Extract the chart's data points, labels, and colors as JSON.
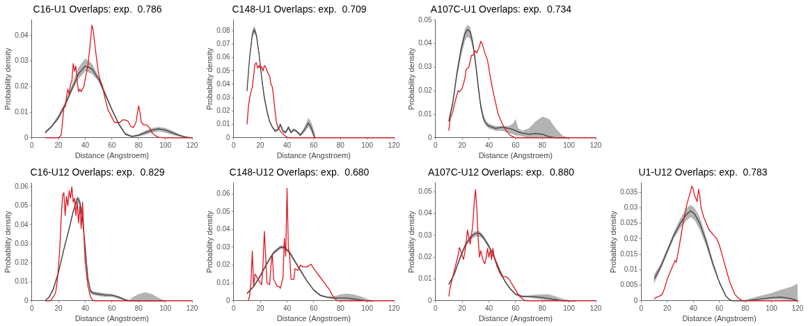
{
  "chart_data": [
    {
      "type": "line",
      "title": "C16-U1 Overlaps: exp.  0.786",
      "xlabel": "Distance (Angstroem)",
      "ylabel": "Probability density",
      "xlim": [
        0,
        120
      ],
      "xticks": [
        0,
        20,
        40,
        60,
        80,
        100,
        120
      ],
      "ylim": [
        0,
        0.046
      ],
      "yticks": [
        0,
        0.01,
        0.02,
        0.03,
        0.04
      ],
      "grid": false,
      "legend": false,
      "marker": "none",
      "line_style": "solid",
      "series": [
        {
          "color": "#e0141e",
          "x": [
            10,
            20,
            22,
            23,
            24,
            25,
            26,
            27,
            28,
            29,
            30,
            31,
            32,
            33,
            34,
            35,
            36,
            37,
            38,
            39,
            40,
            42,
            44,
            45,
            46,
            48,
            50,
            51,
            53,
            55,
            57,
            60,
            62,
            64,
            66,
            68,
            70,
            72,
            74,
            76,
            78,
            80,
            81,
            82,
            84,
            86,
            88,
            90,
            92,
            95,
            100,
            120
          ],
          "values": [
            0,
            0,
            0.001,
            0.006,
            0.012,
            0.012,
            0.016,
            0.019,
            0.017,
            0.021,
            0.022,
            0.029,
            0.026,
            0.028,
            0.022,
            0.018,
            0.019,
            0.018,
            0.019,
            0.02,
            0.023,
            0.028,
            0.038,
            0.044,
            0.042,
            0.033,
            0.025,
            0.023,
            0.02,
            0.015,
            0.011,
            0.008,
            0.006,
            0.006,
            0.006,
            0.007,
            0.007,
            0.0065,
            0.0045,
            0.004,
            0.006,
            0.0125,
            0.01,
            0.006,
            0.005,
            0.005,
            0.004,
            0.002,
            0.001,
            0.0002,
            0,
            0
          ]
        },
        {
          "color": "#404040",
          "x": [
            10,
            15,
            20,
            25,
            30,
            35,
            40,
            45,
            50,
            55,
            60,
            65,
            70,
            75,
            80,
            85,
            90,
            95,
            100,
            105,
            110,
            115,
            120
          ],
          "values": [
            0.002,
            0.0045,
            0.008,
            0.013,
            0.019,
            0.025,
            0.028,
            0.027,
            0.023,
            0.017,
            0.011,
            0.0055,
            0.0015,
            0.0005,
            0.001,
            0.002,
            0.003,
            0.0035,
            0.003,
            0.002,
            0.001,
            0.0003,
            0
          ],
          "lower": [
            0.0015,
            0.004,
            0.007,
            0.012,
            0.018,
            0.023,
            0.026,
            0.025,
            0.022,
            0.016,
            0.0105,
            0.005,
            0.001,
            0.0002,
            0.0005,
            0.0012,
            0.002,
            0.0025,
            0.002,
            0.0012,
            0.0005,
            0.0001,
            0
          ],
          "upper": [
            0.0025,
            0.005,
            0.009,
            0.014,
            0.0205,
            0.0275,
            0.031,
            0.029,
            0.024,
            0.018,
            0.0115,
            0.006,
            0.002,
            0.0008,
            0.0015,
            0.0028,
            0.0038,
            0.0042,
            0.0038,
            0.0028,
            0.0015,
            0.0005,
            0
          ]
        }
      ]
    },
    {
      "type": "line",
      "title": "C148-U1 Overlaps: exp.  0.709",
      "xlabel": "Distance (Angstroem)",
      "ylabel": "Probability density",
      "xlim": [
        0,
        120
      ],
      "xticks": [
        0,
        20,
        40,
        60,
        80,
        100,
        120
      ],
      "ylim": [
        0,
        0.088
      ],
      "yticks": [
        0,
        0.01,
        0.02,
        0.03,
        0.04,
        0.05,
        0.06,
        0.07,
        0.08
      ],
      "grid": false,
      "legend": false,
      "marker": "none",
      "line_style": "solid",
      "series": [
        {
          "color": "#e0141e",
          "x": [
            10,
            11,
            12,
            14,
            16,
            17,
            18,
            19,
            20,
            21,
            22,
            23,
            24,
            25,
            26,
            27,
            28,
            29,
            30,
            31,
            32,
            33,
            35,
            37,
            39,
            41,
            120
          ],
          "values": [
            0.01,
            0.022,
            0.03,
            0.038,
            0.055,
            0.056,
            0.052,
            0.054,
            0.052,
            0.053,
            0.05,
            0.054,
            0.053,
            0.05,
            0.048,
            0.046,
            0.04,
            0.038,
            0.03,
            0.02,
            0.012,
            0.008,
            0.005,
            0.003,
            0.001,
            0,
            0
          ]
        },
        {
          "color": "#404040",
          "x": [
            10,
            12,
            14,
            15.5,
            17,
            19,
            21,
            23,
            25,
            27,
            29,
            31,
            33,
            35,
            37,
            39,
            41,
            43,
            45,
            47,
            50,
            53,
            56,
            58,
            60,
            61
          ],
          "values": [
            0.035,
            0.06,
            0.077,
            0.081,
            0.077,
            0.063,
            0.045,
            0.03,
            0.02,
            0.012,
            0.008,
            0.005,
            0.006,
            0.01,
            0.005,
            0.004,
            0.008,
            0.004,
            0.006,
            0.005,
            0.002,
            0.006,
            0.011,
            0.008,
            0.002,
            0
          ],
          "lower": [
            0.033,
            0.058,
            0.075,
            0.078,
            0.075,
            0.061,
            0.043,
            0.028,
            0.018,
            0.011,
            0.007,
            0.004,
            0.005,
            0.008,
            0.004,
            0.003,
            0.006,
            0.003,
            0.005,
            0.004,
            0.001,
            0.004,
            0.008,
            0.005,
            0,
            0
          ],
          "upper": [
            0.037,
            0.062,
            0.08,
            0.084,
            0.079,
            0.065,
            0.047,
            0.032,
            0.022,
            0.013,
            0.009,
            0.006,
            0.007,
            0.011,
            0.006,
            0.005,
            0.009,
            0.005,
            0.007,
            0.006,
            0.003,
            0.008,
            0.015,
            0.012,
            0.006,
            0.003
          ]
        }
      ]
    },
    {
      "type": "line",
      "title": "A107C-U1 Overlaps: exp.  0.734",
      "xlabel": "Distance (Angstroem)",
      "ylabel": "Probability density",
      "xlim": [
        0,
        120
      ],
      "xticks": [
        0,
        20,
        40,
        60,
        80,
        100,
        120
      ],
      "ylim": [
        0,
        0.05
      ],
      "yticks": [
        0,
        0.01,
        0.02,
        0.03,
        0.04,
        0.05
      ],
      "grid": false,
      "legend": false,
      "marker": "none",
      "line_style": "solid",
      "series": [
        {
          "color": "#e0141e",
          "x": [
            10,
            11,
            13,
            15,
            17,
            18,
            20,
            22,
            23,
            25,
            27,
            28,
            30,
            31,
            33,
            34,
            35,
            37,
            39,
            41,
            43,
            45,
            47,
            50,
            53,
            56,
            60,
            120
          ],
          "values": [
            0.003,
            0.008,
            0.011,
            0.016,
            0.02,
            0.0195,
            0.021,
            0.025,
            0.029,
            0.03,
            0.035,
            0.035,
            0.037,
            0.036,
            0.039,
            0.041,
            0.04,
            0.036,
            0.033,
            0.026,
            0.02,
            0.015,
            0.01,
            0.006,
            0.003,
            0.001,
            0,
            0
          ]
        },
        {
          "color": "#404040",
          "x": [
            10,
            13,
            16,
            19,
            22,
            24,
            26,
            28,
            30,
            32,
            34,
            36,
            38,
            40,
            45,
            50,
            55,
            58,
            60,
            62,
            65,
            70,
            75,
            80,
            85,
            90,
            95,
            100
          ],
          "values": [
            0.007,
            0.015,
            0.027,
            0.037,
            0.044,
            0.046,
            0.045,
            0.04,
            0.032,
            0.022,
            0.013,
            0.008,
            0.006,
            0.005,
            0.004,
            0.0045,
            0.004,
            0.0035,
            0.003,
            0.0025,
            0.002,
            0.0015,
            0.0018,
            0.0015,
            0.0005,
            0,
            0,
            0
          ],
          "lower": [
            0.006,
            0.013,
            0.025,
            0.034,
            0.041,
            0.043,
            0.042,
            0.038,
            0.03,
            0.02,
            0.012,
            0.007,
            0.005,
            0.004,
            0.003,
            0.003,
            0.002,
            0.0015,
            0.001,
            0.001,
            0.0005,
            0,
            0,
            0,
            0,
            0,
            0,
            0
          ],
          "upper": [
            0.008,
            0.016,
            0.029,
            0.039,
            0.046,
            0.048,
            0.047,
            0.042,
            0.034,
            0.024,
            0.015,
            0.01,
            0.007,
            0.006,
            0.005,
            0.005,
            0.005,
            0.006,
            0.008,
            0.004,
            0.003,
            0.004,
            0.007,
            0.009,
            0.008,
            0.004,
            0.001,
            0
          ]
        }
      ]
    },
    {
      "type": "line",
      "title": "C16-U12 Overlaps: exp.  0.829",
      "xlabel": "Distance (Angstroem)",
      "ylabel": "Probability density",
      "xlim": [
        0,
        120
      ],
      "xticks": [
        0,
        20,
        40,
        60,
        80,
        100,
        120
      ],
      "ylim": [
        0,
        0.062
      ],
      "yticks": [
        0,
        0.01,
        0.02,
        0.03,
        0.04,
        0.05,
        0.06
      ],
      "grid": false,
      "legend": false,
      "marker": "none",
      "line_style": "solid",
      "series": [
        {
          "color": "#e0141e",
          "x": [
            10,
            14,
            15,
            17,
            18,
            19,
            20,
            21,
            22,
            23,
            24,
            25,
            26,
            27,
            28,
            29,
            30,
            31,
            32,
            33,
            34,
            35,
            36,
            37,
            38,
            39,
            40,
            42,
            44,
            46,
            120
          ],
          "values": [
            0,
            0,
            0.001,
            0.003,
            0.005,
            0.01,
            0.018,
            0.028,
            0.043,
            0.055,
            0.057,
            0.045,
            0.055,
            0.05,
            0.058,
            0.054,
            0.06,
            0.052,
            0.054,
            0.045,
            0.052,
            0.041,
            0.05,
            0.038,
            0.052,
            0.035,
            0.02,
            0.008,
            0.002,
            0,
            0
          ]
        },
        {
          "color": "#404040",
          "x": [
            10,
            13,
            16,
            20,
            24,
            28,
            31,
            34,
            36,
            38,
            40,
            42,
            44,
            46,
            50,
            55,
            60,
            65,
            70,
            73,
            76,
            80,
            85,
            90,
            95,
            100
          ],
          "values": [
            0,
            0.002,
            0.006,
            0.015,
            0.027,
            0.038,
            0.047,
            0.054,
            0.052,
            0.043,
            0.028,
            0.012,
            0.005,
            0.004,
            0.0035,
            0.003,
            0.003,
            0.002,
            0.0005,
            0,
            0,
            0,
            0,
            0,
            0,
            0
          ],
          "lower": [
            0,
            0.0015,
            0.005,
            0.014,
            0.026,
            0.037,
            0.046,
            0.052,
            0.05,
            0.041,
            0.026,
            0.011,
            0.004,
            0.003,
            0.0025,
            0.002,
            0.002,
            0.001,
            0,
            0,
            0,
            0,
            0,
            0,
            0,
            0
          ],
          "upper": [
            0,
            0.0025,
            0.007,
            0.016,
            0.028,
            0.039,
            0.048,
            0.055,
            0.054,
            0.045,
            0.03,
            0.013,
            0.006,
            0.005,
            0.0045,
            0.004,
            0.0035,
            0.0025,
            0.001,
            0.0005,
            0.002,
            0.0035,
            0.0045,
            0.0035,
            0.0015,
            0
          ]
        }
      ]
    },
    {
      "type": "line",
      "title": "C148-U12 Overlaps: exp.  0.680",
      "xlabel": "Distance (Angstroem)",
      "ylabel": "Probability density",
      "xlim": [
        0,
        120
      ],
      "xticks": [
        0,
        20,
        40,
        60,
        80,
        100,
        120
      ],
      "ylim": [
        0,
        0.066
      ],
      "yticks": [
        0,
        0.01,
        0.02,
        0.03,
        0.04,
        0.05,
        0.06
      ],
      "grid": false,
      "legend": false,
      "marker": "none",
      "line_style": "solid",
      "series": [
        {
          "color": "#e0141e",
          "x": [
            11,
            12,
            13,
            14,
            15,
            16,
            17,
            18,
            20,
            21,
            22,
            23,
            24,
            25,
            27,
            28,
            29,
            30,
            32,
            33,
            34,
            35,
            36,
            37,
            38,
            39,
            40,
            41,
            42,
            43,
            45,
            46,
            48,
            50,
            52,
            55,
            58,
            60,
            62,
            65,
            68,
            70,
            72,
            74,
            76,
            78,
            120
          ],
          "values": [
            0,
            0.003,
            0.01,
            0.028,
            0.008,
            0.015,
            0.014,
            0.012,
            0.01,
            0.009,
            0.02,
            0.039,
            0.025,
            0.01,
            0.009,
            0.02,
            0.026,
            0.012,
            0.009,
            0.008,
            0.008,
            0.007,
            0.01,
            0.013,
            0.035,
            0.025,
            0.063,
            0.03,
            0.025,
            0.012,
            0.012,
            0.018,
            0.017,
            0.02,
            0.019,
            0.019,
            0.0205,
            0.018,
            0.016,
            0.013,
            0.01,
            0.008,
            0.006,
            0.003,
            0.001,
            0,
            0
          ]
        },
        {
          "color": "#404040",
          "x": [
            10,
            15,
            20,
            25,
            30,
            35,
            38,
            42,
            46,
            50,
            55,
            60,
            65,
            70,
            75,
            80,
            85,
            90,
            95,
            100,
            105
          ],
          "values": [
            0.004,
            0.008,
            0.014,
            0.021,
            0.027,
            0.03,
            0.03,
            0.027,
            0.022,
            0.017,
            0.011,
            0.006,
            0.003,
            0.002,
            0.0015,
            0.0015,
            0.0015,
            0.001,
            0.0005,
            0,
            0
          ],
          "lower": [
            0.0035,
            0.0075,
            0.013,
            0.02,
            0.026,
            0.029,
            0.029,
            0.026,
            0.021,
            0.016,
            0.0105,
            0.0055,
            0.0025,
            0.0015,
            0.001,
            0.0005,
            0.0003,
            0,
            0,
            0,
            0
          ],
          "upper": [
            0.0045,
            0.0085,
            0.015,
            0.022,
            0.028,
            0.031,
            0.031,
            0.028,
            0.023,
            0.018,
            0.0115,
            0.0065,
            0.0035,
            0.0025,
            0.0025,
            0.0035,
            0.004,
            0.0035,
            0.0025,
            0.001,
            0
          ]
        }
      ]
    },
    {
      "type": "line",
      "title": "A107C-U12 Overlaps: exp.  0.880",
      "xlabel": "Distance (Angstroem)",
      "ylabel": "Probability density",
      "xlim": [
        0,
        120
      ],
      "xticks": [
        0,
        20,
        40,
        60,
        80,
        100,
        120
      ],
      "ylim": [
        0,
        0.054
      ],
      "yticks": [
        0,
        0.01,
        0.02,
        0.03,
        0.04,
        0.05
      ],
      "grid": false,
      "legend": false,
      "marker": "none",
      "line_style": "solid",
      "series": [
        {
          "color": "#e0141e",
          "x": [
            10,
            11,
            13,
            15,
            17,
            18,
            20,
            21,
            22,
            24,
            25,
            26,
            27,
            28,
            29,
            30,
            31,
            32,
            33,
            34,
            35,
            36,
            37,
            38,
            39,
            40,
            41,
            42,
            43,
            44,
            46,
            48,
            50,
            53,
            55,
            58,
            60,
            63,
            66,
            68,
            120
          ],
          "values": [
            0.002,
            0.006,
            0.011,
            0.016,
            0.021,
            0.0245,
            0.021,
            0.019,
            0.022,
            0.0325,
            0.029,
            0.026,
            0.03,
            0.035,
            0.045,
            0.051,
            0.042,
            0.028,
            0.02,
            0.023,
            0.02,
            0.018,
            0.017,
            0.02,
            0.024,
            0.02,
            0.023,
            0.019,
            0.024,
            0.02,
            0.016,
            0.013,
            0.011,
            0.011,
            0.01,
            0.007,
            0.005,
            0.002,
            0.0005,
            0,
            0
          ]
        },
        {
          "color": "#404040",
          "x": [
            10,
            14,
            18,
            22,
            26,
            30,
            33,
            36,
            40,
            44,
            48,
            52,
            56,
            60,
            65,
            70,
            75,
            80,
            85,
            90,
            95,
            100,
            105
          ],
          "values": [
            0.0075,
            0.012,
            0.019,
            0.025,
            0.029,
            0.031,
            0.031,
            0.029,
            0.025,
            0.02,
            0.014,
            0.009,
            0.0055,
            0.003,
            0.002,
            0.002,
            0.0018,
            0.0015,
            0.001,
            0.0005,
            0,
            0,
            0
          ],
          "lower": [
            0.007,
            0.0115,
            0.018,
            0.024,
            0.028,
            0.0295,
            0.0295,
            0.028,
            0.024,
            0.019,
            0.013,
            0.0085,
            0.005,
            0.0025,
            0.0015,
            0.0015,
            0.001,
            0.0005,
            0.0002,
            0,
            0,
            0,
            0
          ],
          "upper": [
            0.008,
            0.0125,
            0.02,
            0.026,
            0.03,
            0.032,
            0.032,
            0.03,
            0.026,
            0.021,
            0.015,
            0.0095,
            0.006,
            0.0035,
            0.0025,
            0.0025,
            0.0028,
            0.003,
            0.003,
            0.002,
            0.001,
            0.0003,
            0
          ]
        }
      ]
    },
    {
      "type": "line",
      "title": "U1-U12 Overlaps: exp.  0.783",
      "xlabel": "Distance (Angstroem)",
      "ylabel": "Probability density",
      "xlim": [
        0,
        120
      ],
      "xticks": [
        0,
        20,
        40,
        60,
        80,
        100,
        120
      ],
      "ylim": [
        0,
        0.038
      ],
      "yticks": [
        0,
        0.005,
        0.01,
        0.015,
        0.02,
        0.025,
        0.03,
        0.035
      ],
      "grid": false,
      "legend": false,
      "marker": "none",
      "line_style": "solid",
      "series": [
        {
          "color": "#e0141e",
          "x": [
            10,
            11,
            14,
            16,
            18,
            20,
            22,
            24,
            26,
            27,
            29,
            31,
            33,
            35,
            37,
            39,
            40,
            41,
            42,
            43,
            44,
            45,
            46,
            48,
            50,
            52,
            54,
            56,
            58,
            60,
            62,
            64,
            66,
            68,
            70,
            72,
            75,
            78,
            120
          ],
          "values": [
            0.0005,
            0.001,
            0.0015,
            0.002,
            0.004,
            0.007,
            0.009,
            0.011,
            0.013,
            0.0125,
            0.017,
            0.022,
            0.027,
            0.031,
            0.034,
            0.037,
            0.036,
            0.034,
            0.033,
            0.032,
            0.036,
            0.034,
            0.03,
            0.027,
            0.025,
            0.023,
            0.022,
            0.021,
            0.02,
            0.018,
            0.015,
            0.012,
            0.009,
            0.006,
            0.004,
            0.002,
            0.0007,
            0,
            0
          ]
        },
        {
          "color": "#404040",
          "x": [
            10,
            15,
            20,
            25,
            30,
            35,
            38,
            41,
            45,
            50,
            55,
            60,
            65,
            68,
            70,
            80,
            90,
            100,
            107,
            115,
            120
          ],
          "values": [
            0.007,
            0.011,
            0.016,
            0.021,
            0.025,
            0.028,
            0.029,
            0.028,
            0.025,
            0.019,
            0.012,
            0.006,
            0.0015,
            0.0003,
            0,
            0,
            0.0005,
            0.001,
            0.0012,
            0.0007,
            0
          ],
          "lower": [
            0.0055,
            0.01,
            0.015,
            0.02,
            0.0235,
            0.026,
            0.027,
            0.026,
            0.023,
            0.0175,
            0.011,
            0.0055,
            0.0012,
            0.0002,
            0,
            0,
            0.0002,
            0.0004,
            0.0004,
            0.0002,
            0
          ],
          "upper": [
            0.0085,
            0.012,
            0.017,
            0.022,
            0.0265,
            0.03,
            0.031,
            0.03,
            0.027,
            0.0205,
            0.013,
            0.0065,
            0.0018,
            0.0004,
            0,
            0.0003,
            0.0015,
            0.0025,
            0.0035,
            0.0045,
            0.0055
          ]
        }
      ]
    }
  ]
}
